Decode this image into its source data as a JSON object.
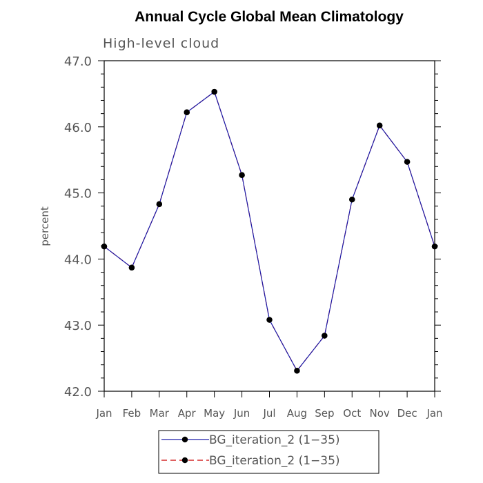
{
  "chart_data": {
    "type": "line",
    "title": "Annual Cycle Global Mean Climatology",
    "subtitle": "High-level cloud",
    "ylabel": "percent",
    "xlabel": "",
    "categories": [
      "Jan",
      "Feb",
      "Mar",
      "Apr",
      "May",
      "Jun",
      "Jul",
      "Aug",
      "Sep",
      "Oct",
      "Nov",
      "Dec",
      "Jan"
    ],
    "ylim": [
      42.0,
      47.0
    ],
    "yticks": [
      "42.0",
      "43.0",
      "44.0",
      "45.0",
      "46.0",
      "47.0"
    ],
    "grid": false,
    "legend_position": "bottom",
    "series": [
      {
        "name": "BG_iteration_2 (1−35)",
        "color": "#1a1aa8",
        "line_style": "solid",
        "marker": "circle",
        "values": [
          44.19,
          43.87,
          44.83,
          46.22,
          46.53,
          45.27,
          43.08,
          42.31,
          42.84,
          44.9,
          46.02,
          45.47,
          44.19
        ]
      },
      {
        "name": "BG_iteration_2 (1−35)",
        "color": "#cc0000",
        "line_style": "dashed",
        "marker": "circle",
        "values": [
          44.19,
          43.87,
          44.83,
          46.22,
          46.53,
          45.27,
          43.08,
          42.31,
          42.84,
          44.9,
          46.02,
          45.47,
          44.19
        ]
      }
    ]
  }
}
